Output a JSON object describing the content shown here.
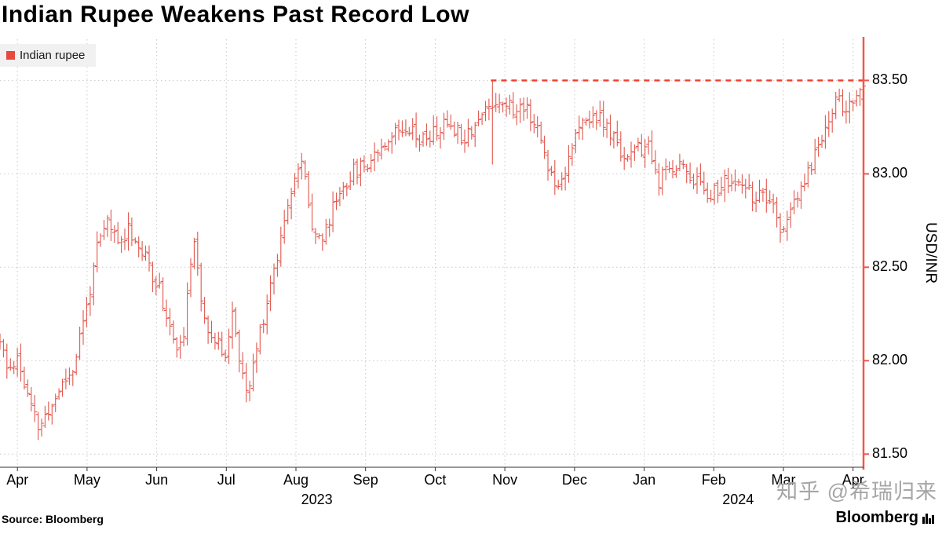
{
  "title": "Indian Rupee Weakens Past Record Low",
  "legend": {
    "label": "Indian rupee"
  },
  "source": "Source: Bloomberg",
  "brand": "Bloomberg",
  "watermark": "知乎 @希瑞归来",
  "colors": {
    "bar": "#e2574d",
    "record_line": "#f23d2e",
    "axis": "#f0584d",
    "grid": "#c9c9c9",
    "text": "#000000",
    "legend_swatch": "#e8483f",
    "watermark": "#a6a6a6"
  },
  "chart_data": {
    "type": "ohlc",
    "title": "Indian Rupee Weakens Past Record Low",
    "series_name": "Indian rupee",
    "ylabel": "USD/INR",
    "y_ticks": [
      81.5,
      82.0,
      82.5,
      83.0,
      83.5
    ],
    "y_domain": [
      81.43,
      83.72
    ],
    "t_domain": [
      -0.25,
      12.15
    ],
    "months": [
      "Apr",
      "May",
      "Jun",
      "Jul",
      "Aug",
      "Sep",
      "Oct",
      "Nov",
      "Dec",
      "Jan",
      "Feb",
      "Mar",
      "Apr"
    ],
    "year_ticks": [
      {
        "label": "2023",
        "t": 4.3
      },
      {
        "label": "2024",
        "t": 10.35
      }
    ],
    "record_line": {
      "value": 83.5,
      "start_t": 6.8
    },
    "bar_count": 250,
    "seed": 11,
    "noise_close": 0.09,
    "noise_range": 0.055,
    "anchors": [
      [
        -0.25,
        82.1
      ],
      [
        -0.15,
        81.95
      ],
      [
        0.0,
        82.02
      ],
      [
        0.15,
        81.8
      ],
      [
        0.3,
        81.64
      ],
      [
        0.45,
        81.72
      ],
      [
        0.6,
        81.85
      ],
      [
        0.8,
        81.96
      ],
      [
        1.0,
        82.3
      ],
      [
        1.15,
        82.6
      ],
      [
        1.3,
        82.75
      ],
      [
        1.45,
        82.62
      ],
      [
        1.6,
        82.72
      ],
      [
        1.75,
        82.6
      ],
      [
        1.9,
        82.5
      ],
      [
        2.05,
        82.38
      ],
      [
        2.2,
        82.15
      ],
      [
        2.35,
        82.05
      ],
      [
        2.45,
        82.35
      ],
      [
        2.55,
        82.68
      ],
      [
        2.65,
        82.3
      ],
      [
        2.8,
        82.1
      ],
      [
        3.0,
        82.05
      ],
      [
        3.1,
        82.28
      ],
      [
        3.2,
        81.95
      ],
      [
        3.3,
        81.8
      ],
      [
        3.45,
        82.1
      ],
      [
        3.6,
        82.35
      ],
      [
        3.75,
        82.6
      ],
      [
        3.9,
        82.9
      ],
      [
        4.0,
        83.0
      ],
      [
        4.1,
        83.05
      ],
      [
        4.25,
        82.7
      ],
      [
        4.4,
        82.65
      ],
      [
        4.55,
        82.85
      ],
      [
        4.7,
        82.95
      ],
      [
        4.85,
        83.02
      ],
      [
        5.0,
        83.05
      ],
      [
        5.2,
        83.15
      ],
      [
        5.4,
        83.22
      ],
      [
        5.6,
        83.27
      ],
      [
        5.8,
        83.18
      ],
      [
        6.0,
        83.22
      ],
      [
        6.2,
        83.28
      ],
      [
        6.4,
        83.2
      ],
      [
        6.6,
        83.28
      ],
      [
        6.8,
        83.38
      ],
      [
        7.0,
        83.4
      ],
      [
        7.15,
        83.32
      ],
      [
        7.3,
        83.38
      ],
      [
        7.5,
        83.2
      ],
      [
        7.65,
        83.0
      ],
      [
        7.8,
        82.95
      ],
      [
        7.95,
        83.15
      ],
      [
        8.1,
        83.25
      ],
      [
        8.3,
        83.32
      ],
      [
        8.5,
        83.22
      ],
      [
        8.7,
        83.1
      ],
      [
        8.9,
        83.12
      ],
      [
        9.05,
        83.15
      ],
      [
        9.2,
        82.95
      ],
      [
        9.35,
        83.02
      ],
      [
        9.5,
        83.06
      ],
      [
        9.7,
        82.98
      ],
      [
        9.85,
        82.92
      ],
      [
        10.0,
        82.9
      ],
      [
        10.2,
        82.96
      ],
      [
        10.4,
        82.92
      ],
      [
        10.6,
        82.88
      ],
      [
        10.8,
        82.85
      ],
      [
        10.95,
        82.7
      ],
      [
        11.1,
        82.78
      ],
      [
        11.3,
        82.95
      ],
      [
        11.5,
        83.15
      ],
      [
        11.65,
        83.3
      ],
      [
        11.8,
        83.42
      ],
      [
        11.9,
        83.32
      ],
      [
        12.0,
        83.38
      ],
      [
        12.1,
        83.45
      ],
      [
        12.15,
        83.47
      ]
    ]
  }
}
